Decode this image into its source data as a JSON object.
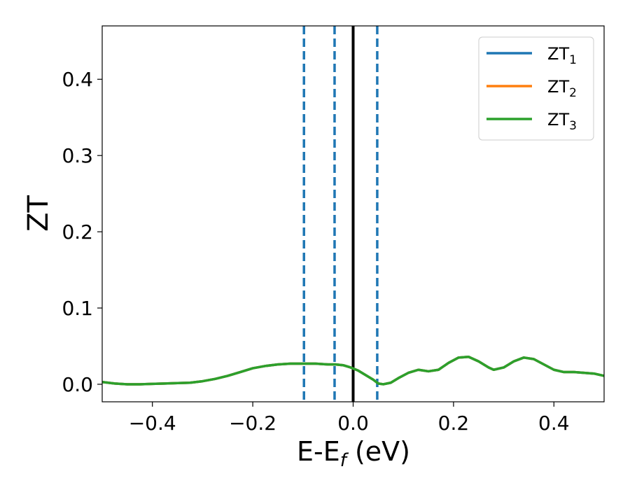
{
  "chart_data": {
    "type": "line",
    "title": "",
    "xlabel": {
      "main": "E-E",
      "sub": "f",
      "suffix": " (eV)"
    },
    "ylabel": "ZT",
    "xlim": [
      -0.5,
      0.5
    ],
    "ylim": [
      -0.023,
      0.47
    ],
    "xticks": [
      -0.4,
      -0.2,
      0.0,
      0.2,
      0.4
    ],
    "xtick_labels": [
      "−0.4",
      "−0.2",
      "0.0",
      "0.2",
      "0.4"
    ],
    "yticks": [
      0.0,
      0.1,
      0.2,
      0.3,
      0.4
    ],
    "ytick_labels": [
      "0.0",
      "0.1",
      "0.2",
      "0.3",
      "0.4"
    ],
    "grid": false,
    "legend_position": "top-right",
    "vertical_lines": [
      {
        "x": -0.098,
        "style": "dashed",
        "color": "#1f77b4"
      },
      {
        "x": -0.037,
        "style": "dashed",
        "color": "#1f77b4"
      },
      {
        "x": 0.0,
        "style": "solid",
        "color": "#000000"
      },
      {
        "x": 0.048,
        "style": "dashed",
        "color": "#1f77b4"
      }
    ],
    "x": [
      -0.5,
      -0.475,
      -0.45,
      -0.425,
      -0.4,
      -0.375,
      -0.35,
      -0.325,
      -0.3,
      -0.275,
      -0.25,
      -0.225,
      -0.2,
      -0.175,
      -0.15,
      -0.125,
      -0.1,
      -0.075,
      -0.05,
      -0.035,
      -0.02,
      -0.005,
      0.01,
      0.025,
      0.04,
      0.05,
      0.06,
      0.075,
      0.09,
      0.11,
      0.13,
      0.15,
      0.17,
      0.19,
      0.21,
      0.23,
      0.25,
      0.27,
      0.28,
      0.3,
      0.32,
      0.34,
      0.36,
      0.38,
      0.4,
      0.42,
      0.44,
      0.46,
      0.48,
      0.5
    ],
    "series": [
      {
        "name": "ZT",
        "sub": "1",
        "color": "#1f77b4",
        "values": [
          0.003,
          0.001,
          0.0,
          0.0,
          0.0005,
          0.001,
          0.0015,
          0.002,
          0.004,
          0.007,
          0.011,
          0.016,
          0.021,
          0.024,
          0.026,
          0.027,
          0.027,
          0.027,
          0.026,
          0.026,
          0.025,
          0.022,
          0.018,
          0.012,
          0.006,
          0.001,
          0.0,
          0.002,
          0.008,
          0.015,
          0.019,
          0.017,
          0.019,
          0.028,
          0.035,
          0.036,
          0.03,
          0.022,
          0.019,
          0.022,
          0.03,
          0.035,
          0.033,
          0.026,
          0.019,
          0.016,
          0.016,
          0.015,
          0.014,
          0.011
        ]
      },
      {
        "name": "ZT",
        "sub": "2",
        "color": "#ff7f0e",
        "values": [
          0.003,
          0.001,
          0.0,
          0.0,
          0.0005,
          0.001,
          0.0015,
          0.002,
          0.004,
          0.007,
          0.011,
          0.016,
          0.021,
          0.024,
          0.026,
          0.027,
          0.027,
          0.027,
          0.026,
          0.026,
          0.025,
          0.022,
          0.018,
          0.012,
          0.006,
          0.001,
          0.0,
          0.002,
          0.008,
          0.015,
          0.019,
          0.017,
          0.019,
          0.028,
          0.035,
          0.036,
          0.03,
          0.022,
          0.019,
          0.022,
          0.03,
          0.035,
          0.033,
          0.026,
          0.019,
          0.016,
          0.016,
          0.015,
          0.014,
          0.011
        ]
      },
      {
        "name": "ZT",
        "sub": "3",
        "color": "#2ca02c",
        "values": [
          0.003,
          0.001,
          0.0,
          0.0,
          0.0005,
          0.001,
          0.0015,
          0.002,
          0.004,
          0.007,
          0.011,
          0.016,
          0.021,
          0.024,
          0.026,
          0.027,
          0.027,
          0.027,
          0.026,
          0.026,
          0.025,
          0.022,
          0.018,
          0.012,
          0.006,
          0.001,
          0.0,
          0.002,
          0.008,
          0.015,
          0.019,
          0.017,
          0.019,
          0.028,
          0.035,
          0.036,
          0.03,
          0.022,
          0.019,
          0.022,
          0.03,
          0.035,
          0.033,
          0.026,
          0.019,
          0.016,
          0.016,
          0.015,
          0.014,
          0.011
        ]
      }
    ]
  }
}
